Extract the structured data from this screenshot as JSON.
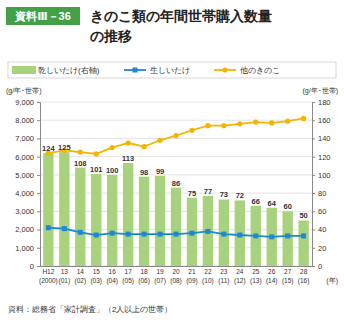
{
  "chart_data": {
    "type": "bar",
    "figure_label": "資料Ⅲ－36",
    "title": "きのこ類の年間世帯購入数量\nの推移",
    "ylabel": "(g/年･世帯)",
    "y2label": "(g/年･世帯)",
    "xlabel": "(年)",
    "source": "資料：総務省「家計調査」（2人以上の世帯）",
    "categories": [
      "H12\n(2000)",
      "13\n(01)",
      "14\n(02)",
      "15\n(03)",
      "16\n(04)",
      "17\n(05)",
      "18\n(06)",
      "19\n(07)",
      "20\n(08)",
      "21\n(09)",
      "22\n(10)",
      "23\n(11)",
      "24\n(12)",
      "25\n(13)",
      "26\n(14)",
      "27\n(15)",
      "28\n(16)"
    ],
    "series": [
      {
        "name": "乾しいたけ(右軸)",
        "type": "bar",
        "axis": "y2",
        "color": "#a9d27f",
        "data_labels": true,
        "values": [
          124,
          125,
          108,
          101,
          100,
          113,
          98,
          99,
          86,
          75,
          77,
          73,
          72,
          66,
          64,
          60,
          50
        ]
      },
      {
        "name": "生しいたけ",
        "type": "line",
        "color": "#1e88d2",
        "marker": "square",
        "values": [
          2100,
          2050,
          1850,
          1700,
          1800,
          1750,
          1750,
          1750,
          1750,
          1800,
          1900,
          1750,
          1700,
          1650,
          1600,
          1650,
          1650
        ]
      },
      {
        "name": "他のきのこ",
        "type": "line",
        "color": "#f4b400",
        "marker": "circle",
        "values": [
          6200,
          6350,
          6250,
          6150,
          6500,
          6750,
          6550,
          6900,
          7150,
          7450,
          7700,
          7700,
          7800,
          7900,
          7850,
          7950,
          8100
        ]
      }
    ],
    "ylim": [
      0,
      9000
    ],
    "yticks": [
      0,
      {
        "value": 1000,
        "label": "1,000"
      },
      {
        "value": 2000,
        "label": "2,000"
      },
      {
        "value": 3000,
        "label": "3,000"
      },
      {
        "value": 4000,
        "label": "4,000"
      },
      {
        "value": 5000,
        "label": "5,000"
      },
      {
        "value": 6000,
        "label": "6,000"
      },
      {
        "value": 7000,
        "label": "7,000"
      },
      {
        "value": 8000,
        "label": "8,000"
      },
      {
        "value": 9000,
        "label": "9,000"
      }
    ],
    "y2lim": [
      0,
      180
    ],
    "y2ticks": [
      0,
      20,
      40,
      60,
      80,
      100,
      120,
      140,
      160,
      180
    ],
    "grid": true
  }
}
